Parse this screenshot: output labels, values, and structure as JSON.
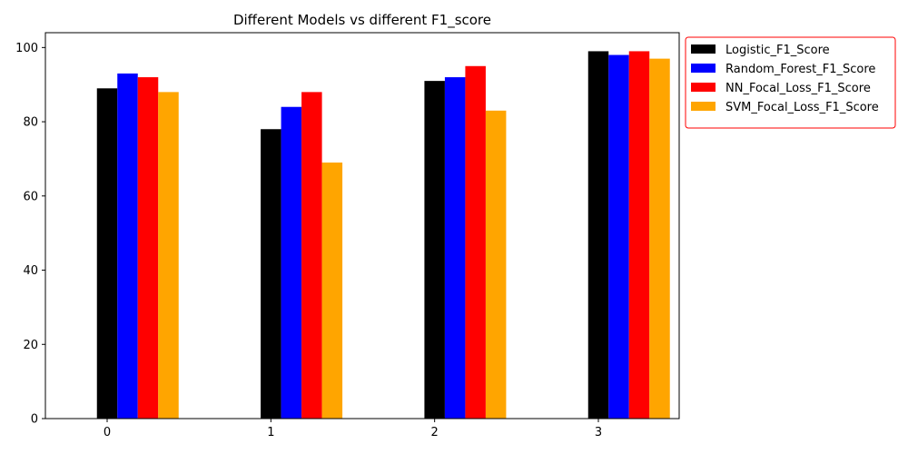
{
  "chart_data": {
    "type": "bar",
    "title": "Different Models vs different F1_score",
    "xlabel": "",
    "ylabel": "",
    "categories": [
      "0",
      "1",
      "2",
      "3"
    ],
    "series": [
      {
        "name": "Logistic_F1_Score",
        "color": "#000000",
        "values": [
          89,
          78,
          91,
          99
        ]
      },
      {
        "name": "Random_Forest_F1_Score",
        "color": "#0000ff",
        "values": [
          93,
          84,
          92,
          98
        ]
      },
      {
        "name": "NN_Focal_Loss_F1_Score",
        "color": "#ff0000",
        "values": [
          92,
          88,
          95,
          99
        ]
      },
      {
        "name": "SVM_Focal_Loss_F1_Score",
        "color": "#ffa500",
        "values": [
          88,
          69,
          83,
          97
        ]
      }
    ],
    "yticks": [
      0,
      20,
      40,
      60,
      80,
      100
    ],
    "ylim": [
      0,
      104
    ],
    "grid": false,
    "legend_position": "outside-top-right",
    "legend_border_color": "#ff0000"
  }
}
